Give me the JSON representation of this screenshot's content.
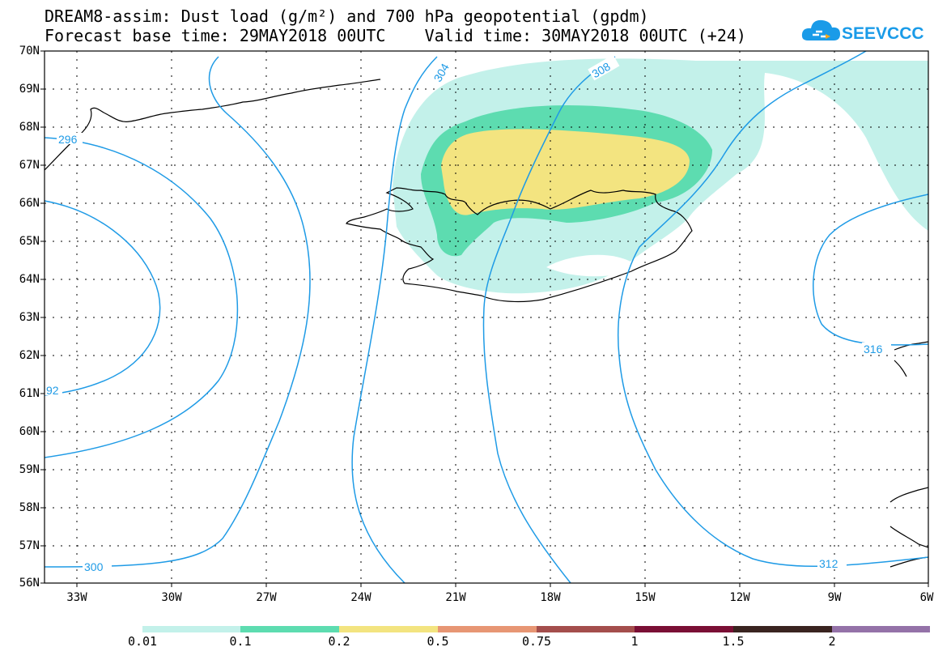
{
  "title_line1": "DREAM8-assim: Dust load (g/m²) and 700 hPa geopotential (gpdm)",
  "title_line2": "Forecast base time: 29MAY2018 00UTC    Valid time: 30MAY2018 00UTC (+24)",
  "logo_text": "SEEVCCC",
  "lat_labels": [
    "70N",
    "69N",
    "68N",
    "67N",
    "66N",
    "65N",
    "64N",
    "63N",
    "62N",
    "61N",
    "60N",
    "59N",
    "58N",
    "57N",
    "56N"
  ],
  "lon_labels": [
    "33W",
    "30W",
    "27W",
    "24W",
    "21W",
    "18W",
    "15W",
    "12W",
    "9W",
    "6W"
  ],
  "contour_labels": {
    "c296": "296",
    "c292": "92",
    "c300": "300",
    "c304": "304",
    "c308": "308",
    "c312": "312",
    "c316": "316"
  },
  "colorbar": {
    "colors": [
      "#c3f1ea",
      "#5ddcb0",
      "#f3e480",
      "#e79674",
      "#a44e4c",
      "#7a0f35",
      "#3a2420",
      "#9472a8"
    ],
    "tick_labels": [
      "0.01",
      "0.1",
      "0.2",
      "0.5",
      "0.75",
      "1",
      "1.5",
      "2"
    ]
  },
  "colors": {
    "contour": "#1f9be6",
    "coast": "#000000",
    "grid": "#000000"
  }
}
